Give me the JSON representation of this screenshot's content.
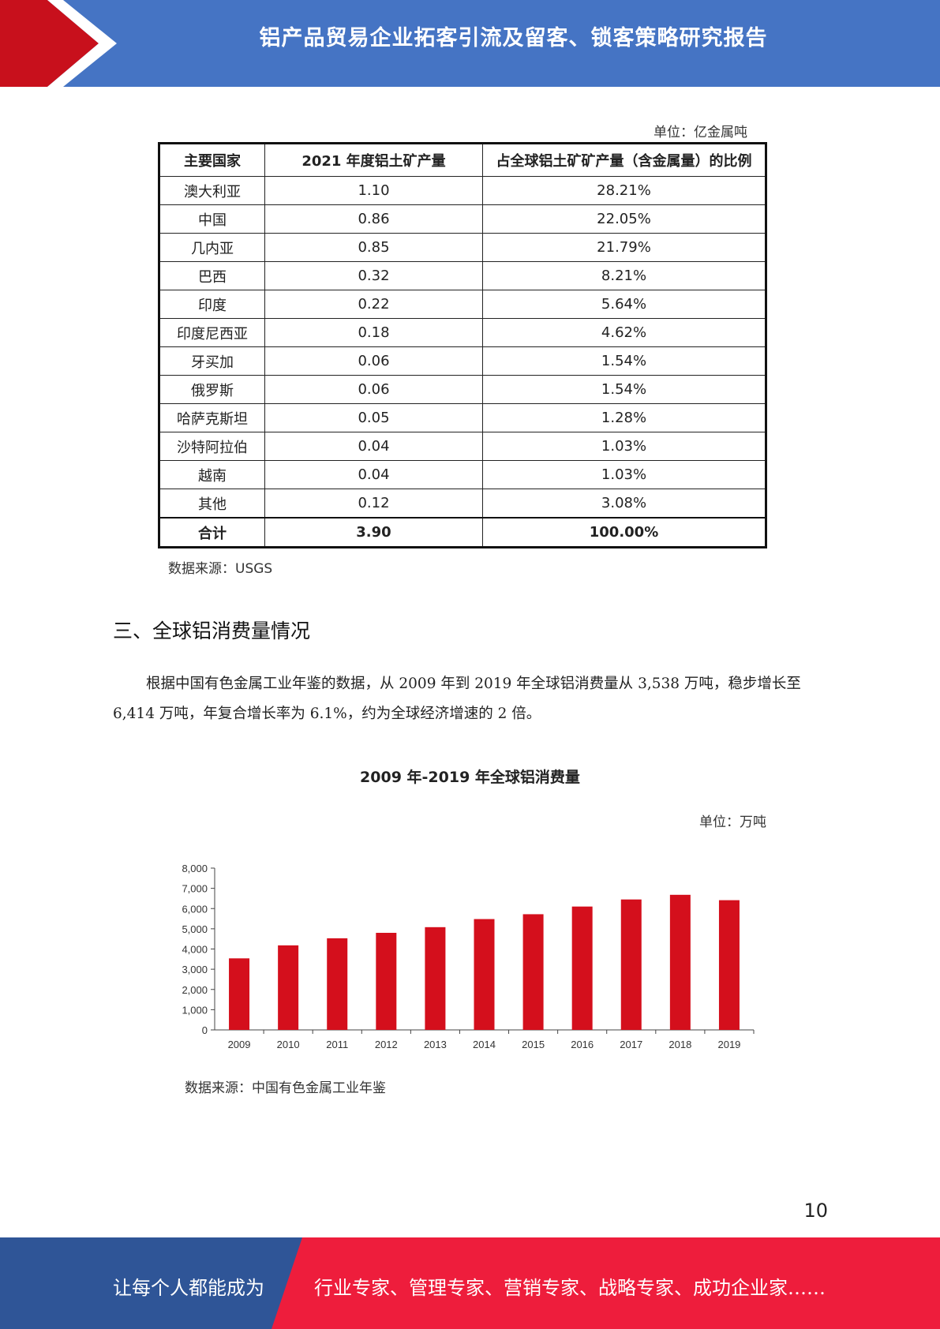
{
  "header": {
    "title": "铝产品贸易企业拓客引流及留客、锁客策略研究报告"
  },
  "table": {
    "unit": "单位：亿金属吨",
    "columns": [
      "主要国家",
      "2021 年度铝土矿产量",
      "占全球铝土矿矿产量（含金属量）的比例"
    ],
    "rows": [
      [
        "澳大利亚",
        "1.10",
        "28.21%"
      ],
      [
        "中国",
        "0.86",
        "22.05%"
      ],
      [
        "几内亚",
        "0.85",
        "21.79%"
      ],
      [
        "巴西",
        "0.32",
        "8.21%"
      ],
      [
        "印度",
        "0.22",
        "5.64%"
      ],
      [
        "印度尼西亚",
        "0.18",
        "4.62%"
      ],
      [
        "牙买加",
        "0.06",
        "1.54%"
      ],
      [
        "俄罗斯",
        "0.06",
        "1.54%"
      ],
      [
        "哈萨克斯坦",
        "0.05",
        "1.28%"
      ],
      [
        "沙特阿拉伯",
        "0.04",
        "1.03%"
      ],
      [
        "越南",
        "0.04",
        "1.03%"
      ],
      [
        "其他",
        "0.12",
        "3.08%"
      ]
    ],
    "total": [
      "合计",
      "3.90",
      "100.00%"
    ],
    "source": "数据来源：USGS"
  },
  "section": {
    "title": "三、全球铝消费量情况",
    "paragraph": "根据中国有色金属工业年鉴的数据，从 2009 年到 2019 年全球铝消费量从 3,538 万吨，稳步增长至 6,414 万吨，年复合增长率为 6.1%，约为全球经济增速的 2 倍。"
  },
  "chart_data": {
    "type": "bar",
    "title": "2009 年-2019 年全球铝消费量",
    "unit": "单位：万吨",
    "categories": [
      "2009",
      "2010",
      "2011",
      "2012",
      "2013",
      "2014",
      "2015",
      "2016",
      "2017",
      "2018",
      "2019"
    ],
    "values": [
      3538,
      4180,
      4530,
      4800,
      5080,
      5480,
      5720,
      6100,
      6450,
      6680,
      6414
    ],
    "ylim": [
      0,
      8000
    ],
    "yticks": [
      "0",
      "1,000",
      "2,000",
      "3,000",
      "4,000",
      "5,000",
      "6,000",
      "7,000",
      "8,000"
    ],
    "bar_color": "#d40f1c",
    "grid": false,
    "source": "数据来源：中国有色金属工业年鉴"
  },
  "page_number": "10",
  "footer": {
    "left": "让每个人都能成为",
    "right": "行业专家、管理专家、营销专家、战略专家、成功企业家……"
  },
  "colors": {
    "header_blue": "#4574c4",
    "header_red": "#c8101c",
    "footer_blue": "#2f5597",
    "footer_red": "#ee1d3c"
  }
}
